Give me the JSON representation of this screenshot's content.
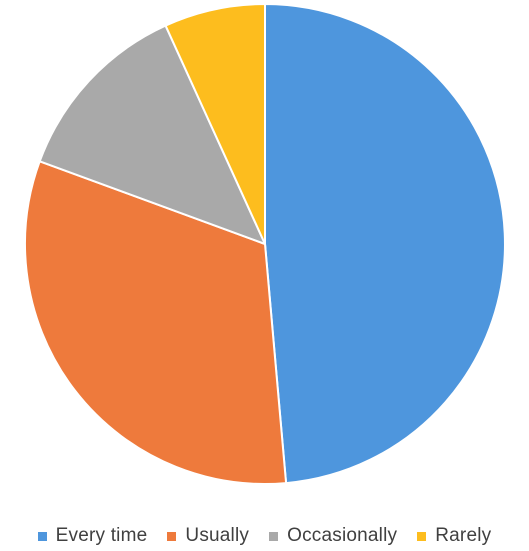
{
  "chart_data": {
    "type": "pie",
    "categories": [
      "Every time",
      "Usually",
      "Occasionally",
      "Rarely"
    ],
    "values": [
      48.6,
      32.0,
      12.6,
      6.8
    ],
    "colors": [
      "#4e96dd",
      "#ee7a3c",
      "#a9a9a9",
      "#fdbd1e"
    ],
    "start_angle": "12 o'clock",
    "direction": "clockwise",
    "legend_position": "bottom",
    "title": ""
  }
}
